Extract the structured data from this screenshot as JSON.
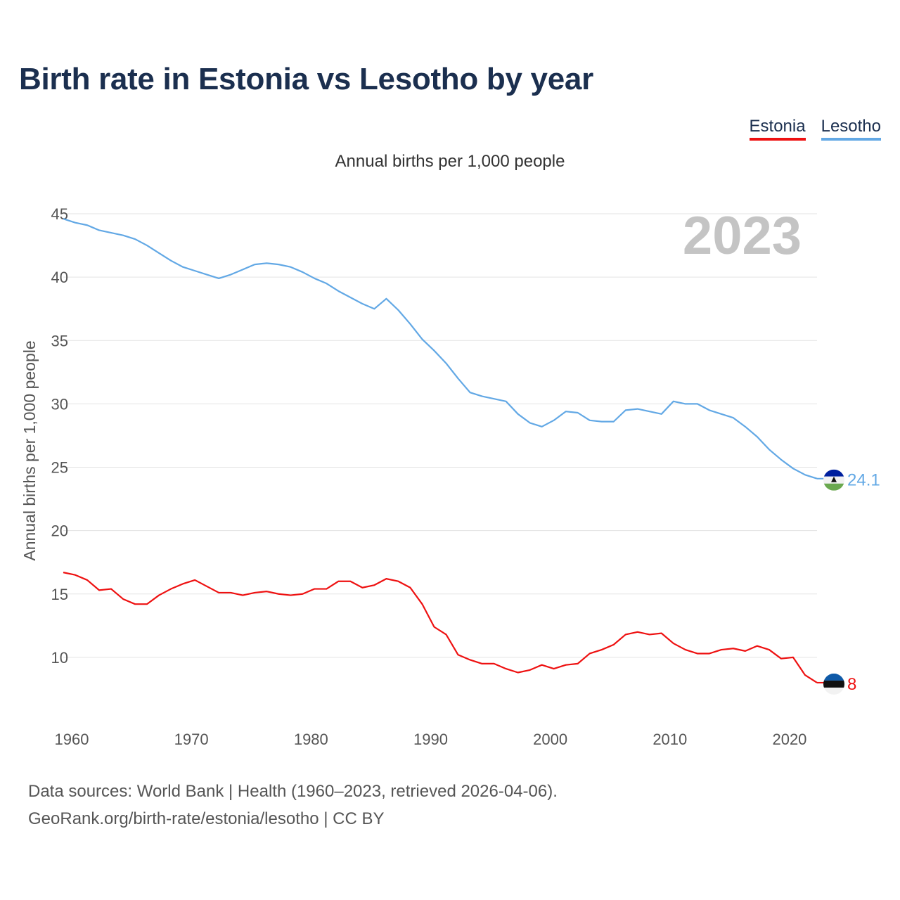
{
  "title": "Birth rate in Estonia vs Lesotho by year",
  "subtitle": "Annual births per 1,000 people",
  "legend": [
    {
      "label": "Estonia",
      "color": "#ee1111"
    },
    {
      "label": "Lesotho",
      "color": "#62a8e5"
    }
  ],
  "footer": {
    "line1": "Data sources: World Bank | Health (1960–2023, retrieved 2026-04-06).",
    "line2": "GeoRank.org/birth-rate/estonia/lesotho | CC BY"
  },
  "chart_data": {
    "type": "line",
    "title": "Birth rate in Estonia vs Lesotho by year",
    "ylabel": "Annual births per 1,000 people",
    "xlabel": "",
    "xlim": [
      1960,
      2023
    ],
    "ylim": [
      5,
      46
    ],
    "xticks": [
      1960,
      1970,
      1980,
      1990,
      2000,
      2010,
      2020
    ],
    "yticks": [
      10,
      15,
      20,
      25,
      30,
      35,
      40,
      45
    ],
    "grid": true,
    "year_label": "2023",
    "series": [
      {
        "name": "Lesotho",
        "color": "#62a8e5",
        "end_label": "24.1",
        "flag": "lesotho-flag-icon",
        "x": [
          1960,
          1961,
          1962,
          1963,
          1964,
          1965,
          1966,
          1967,
          1968,
          1969,
          1970,
          1971,
          1972,
          1973,
          1974,
          1975,
          1976,
          1977,
          1978,
          1979,
          1980,
          1981,
          1982,
          1983,
          1984,
          1985,
          1986,
          1987,
          1988,
          1989,
          1990,
          1991,
          1992,
          1993,
          1994,
          1995,
          1996,
          1997,
          1998,
          1999,
          2000,
          2001,
          2002,
          2003,
          2004,
          2005,
          2006,
          2007,
          2008,
          2009,
          2010,
          2011,
          2012,
          2013,
          2014,
          2015,
          2016,
          2017,
          2018,
          2019,
          2020,
          2021,
          2022,
          2023
        ],
        "values": [
          44.6,
          44.3,
          44.1,
          43.7,
          43.5,
          43.3,
          43.0,
          42.5,
          41.9,
          41.3,
          40.8,
          40.5,
          40.2,
          39.9,
          40.2,
          40.6,
          41.0,
          41.1,
          41.0,
          40.8,
          40.4,
          39.9,
          39.5,
          38.9,
          38.4,
          37.9,
          37.5,
          38.3,
          37.4,
          36.3,
          35.1,
          34.2,
          33.2,
          32.0,
          30.9,
          30.6,
          30.4,
          30.2,
          29.2,
          28.5,
          28.2,
          28.7,
          29.4,
          29.3,
          28.7,
          28.6,
          28.6,
          29.5,
          29.6,
          29.4,
          29.2,
          30.2,
          30.0,
          30.0,
          29.5,
          29.2,
          28.9,
          28.2,
          27.4,
          26.4,
          25.6,
          24.9,
          24.4,
          24.1
        ]
      },
      {
        "name": "Estonia",
        "color": "#ee1111",
        "end_label": "8",
        "flag": "estonia-flag-icon",
        "x": [
          1960,
          1961,
          1962,
          1963,
          1964,
          1965,
          1966,
          1967,
          1968,
          1969,
          1970,
          1971,
          1972,
          1973,
          1974,
          1975,
          1976,
          1977,
          1978,
          1979,
          1980,
          1981,
          1982,
          1983,
          1984,
          1985,
          1986,
          1987,
          1988,
          1989,
          1990,
          1991,
          1992,
          1993,
          1994,
          1995,
          1996,
          1997,
          1998,
          1999,
          2000,
          2001,
          2002,
          2003,
          2004,
          2005,
          2006,
          2007,
          2008,
          2009,
          2010,
          2011,
          2012,
          2013,
          2014,
          2015,
          2016,
          2017,
          2018,
          2019,
          2020,
          2021,
          2022,
          2023
        ],
        "values": [
          16.7,
          16.5,
          16.1,
          15.3,
          15.4,
          14.6,
          14.2,
          14.2,
          14.9,
          15.4,
          15.8,
          16.1,
          15.6,
          15.1,
          15.1,
          14.9,
          15.1,
          15.2,
          15.0,
          14.9,
          15.0,
          15.4,
          15.4,
          16.0,
          16.0,
          15.5,
          15.7,
          16.2,
          16.0,
          15.5,
          14.2,
          12.4,
          11.8,
          10.2,
          9.8,
          9.5,
          9.5,
          9.1,
          8.8,
          9.0,
          9.4,
          9.1,
          9.4,
          9.5,
          10.3,
          10.6,
          11.0,
          11.8,
          12.0,
          11.8,
          11.9,
          11.1,
          10.6,
          10.3,
          10.3,
          10.6,
          10.7,
          10.5,
          10.9,
          10.6,
          9.9,
          10.0,
          8.6,
          8.0
        ]
      }
    ]
  }
}
